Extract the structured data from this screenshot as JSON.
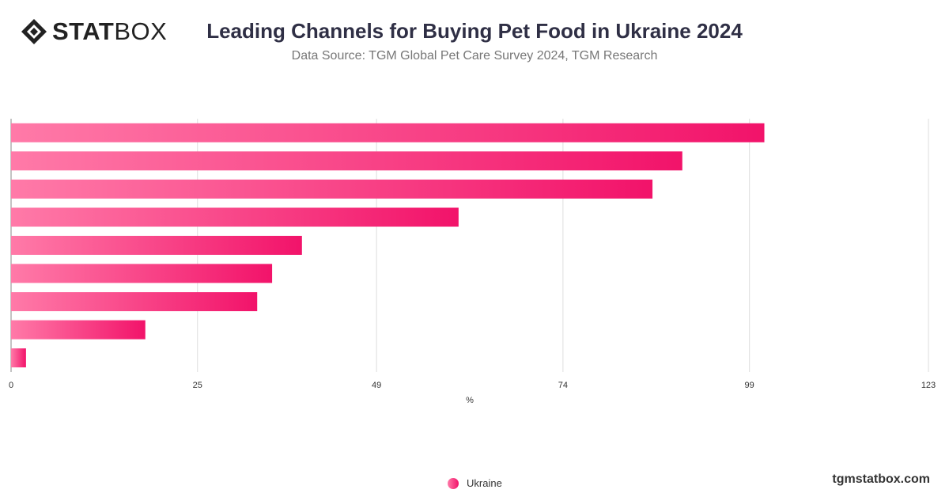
{
  "brand": {
    "logo_text_bold": "STAT",
    "logo_text_light": "BOX",
    "credit": "tgmstatbox.com"
  },
  "header": {
    "title": "Leading Channels for Buying Pet Food in Ukraine 2024",
    "subtitle": "Data Source: TGM Global Pet Care Survey 2024, TGM Research"
  },
  "colors": {
    "bar_start": "#ff7aa8",
    "bar_end": "#f2136a",
    "grid": "#dddddd",
    "axis_text": "#333333"
  },
  "chart_data": {
    "type": "bar",
    "orientation": "horizontal",
    "xlabel": "%",
    "xlim": [
      0,
      123
    ],
    "x_ticks": [
      "0",
      "25",
      "49",
      "74",
      "99",
      "123"
    ],
    "grid": true,
    "legend_placement": "bottom-center",
    "series": [
      {
        "name": "Ukraine",
        "values": [
          101,
          90,
          86,
          60,
          39,
          35,
          33,
          18,
          2
        ]
      }
    ]
  }
}
